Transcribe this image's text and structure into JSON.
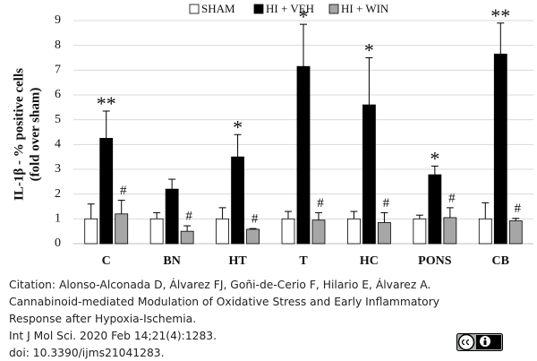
{
  "chart_data": {
    "type": "bar",
    "ylabel": [
      "IL-1β  - % positive cells",
      "(fold over sham)"
    ],
    "categories": [
      "C",
      "BN",
      "HT",
      "T",
      "HC",
      "PONS",
      "CB"
    ],
    "series": [
      {
        "name": "SHAM",
        "color": "#ffffff",
        "values": [
          1,
          1,
          1,
          1,
          1,
          1,
          1
        ],
        "errors": [
          0.6,
          0.25,
          0.45,
          0.3,
          0.3,
          0.15,
          0.65
        ]
      },
      {
        "name": "HI + VEH",
        "color": "#000000",
        "values": [
          4.25,
          2.2,
          3.5,
          7.15,
          5.6,
          2.78,
          7.65
        ],
        "errors": [
          1.1,
          0.4,
          0.9,
          1.7,
          1.9,
          0.35,
          1.25
        ],
        "annotations": [
          "**",
          null,
          "*",
          "*",
          "*",
          "*",
          "**"
        ]
      },
      {
        "name": "HI + WIN",
        "color": "#a6a6a6",
        "values": [
          1.2,
          0.5,
          0.58,
          0.95,
          0.85,
          1.05,
          0.92
        ],
        "errors": [
          0.55,
          0.22,
          0.03,
          0.3,
          0.4,
          0.4,
          0.1
        ],
        "annotations": [
          "#",
          "#",
          "#",
          "#",
          "#",
          "#",
          "#"
        ]
      }
    ],
    "ylim": [
      0,
      9
    ],
    "yticks": [
      0,
      1,
      2,
      3,
      4,
      5,
      6,
      7,
      8,
      9
    ],
    "grid": true
  },
  "citation": [
    "Citation: Alonso-Alconada D, Álvarez FJ, Goñi-de-Cerio F, Hilario E, Álvarez A.",
    "Cannabinoid-mediated Modulation of Oxidative Stress and Early Inflammatory",
    "Response after Hypoxia-Ischemia.",
    "Int J Mol Sci. 2020 Feb 14;21(4):1283.",
    "doi: 10.3390/ijms21041283."
  ]
}
